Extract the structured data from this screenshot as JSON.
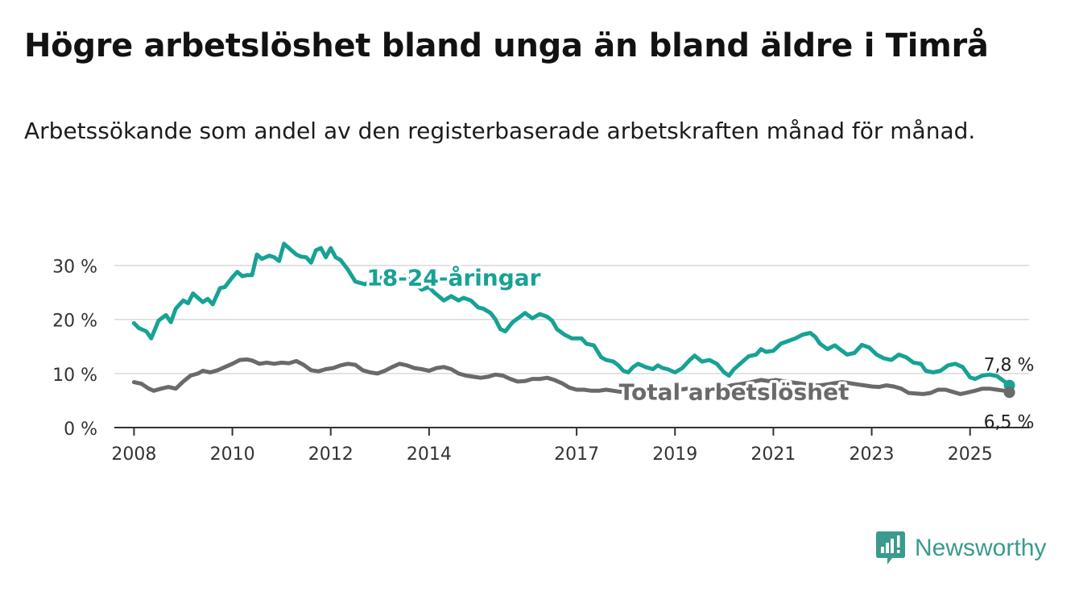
{
  "header": {
    "title": "Högre arbetslöshet bland unga än bland äldre i Timrå",
    "subtitle": "Arbetssökande som andel av den registerbaserade arbetskraften månad för månad."
  },
  "brand": {
    "name": "Newsworthy",
    "icon": "newsworthy-logo-icon",
    "color": "#3a9a8e"
  },
  "chart_data": {
    "type": "line",
    "title": "Högre arbetslöshet bland unga än bland äldre i Timrå",
    "subtitle": "Arbetssökande som andel av den registerbaserade arbetskraften månad för månad.",
    "xlabel": "",
    "ylabel": "",
    "xlim": [
      2007.6,
      2026.2
    ],
    "ylim": [
      0,
      35
    ],
    "x_ticks": [
      2008,
      2010,
      2012,
      2014,
      2017,
      2019,
      2021,
      2023,
      2025
    ],
    "x_tick_labels": [
      "2008",
      "2010",
      "2012",
      "2014",
      "2017",
      "2019",
      "2021",
      "2023",
      "2025"
    ],
    "y_ticks": [
      0,
      10,
      20,
      30
    ],
    "y_tick_labels": [
      "0 %",
      "10 %",
      "20 %",
      "30 %"
    ],
    "grid": true,
    "legend": "none",
    "series": [
      {
        "name": "18-24-åringar",
        "color": "#17a294",
        "end_label": "7,8 %",
        "points": [
          [
            2008.0,
            19.3
          ],
          [
            2008.1,
            18.4
          ],
          [
            2008.25,
            17.8
          ],
          [
            2008.35,
            16.5
          ],
          [
            2008.5,
            19.8
          ],
          [
            2008.65,
            20.8
          ],
          [
            2008.75,
            19.5
          ],
          [
            2008.85,
            22.0
          ],
          [
            2009.0,
            23.5
          ],
          [
            2009.1,
            23.0
          ],
          [
            2009.2,
            24.8
          ],
          [
            2009.3,
            24.0
          ],
          [
            2009.4,
            23.2
          ],
          [
            2009.5,
            23.8
          ],
          [
            2009.6,
            22.8
          ],
          [
            2009.75,
            25.8
          ],
          [
            2009.85,
            26.0
          ],
          [
            2010.0,
            27.8
          ],
          [
            2010.1,
            28.8
          ],
          [
            2010.2,
            28.0
          ],
          [
            2010.3,
            28.2
          ],
          [
            2010.4,
            28.2
          ],
          [
            2010.5,
            32.0
          ],
          [
            2010.6,
            31.2
          ],
          [
            2010.75,
            31.8
          ],
          [
            2010.85,
            31.5
          ],
          [
            2010.95,
            30.8
          ],
          [
            2011.05,
            34.0
          ],
          [
            2011.15,
            33.2
          ],
          [
            2011.3,
            32.0
          ],
          [
            2011.4,
            31.6
          ],
          [
            2011.5,
            31.5
          ],
          [
            2011.6,
            30.5
          ],
          [
            2011.7,
            32.8
          ],
          [
            2011.8,
            33.2
          ],
          [
            2011.9,
            31.5
          ],
          [
            2012.0,
            33.2
          ],
          [
            2012.1,
            31.5
          ],
          [
            2012.2,
            31.0
          ],
          [
            2012.35,
            29.2
          ],
          [
            2012.5,
            27.0
          ],
          [
            2012.7,
            26.5
          ],
          [
            2012.9,
            27.5
          ],
          [
            2013.1,
            27.8
          ],
          [
            2013.3,
            26.8
          ],
          [
            2013.5,
            28.0
          ],
          [
            2013.7,
            26.8
          ],
          [
            2013.85,
            25.5
          ],
          [
            2014.0,
            26.0
          ],
          [
            2014.1,
            25.0
          ],
          [
            2014.3,
            23.5
          ],
          [
            2014.45,
            24.3
          ],
          [
            2014.6,
            23.5
          ],
          [
            2014.7,
            24.0
          ],
          [
            2014.85,
            23.5
          ],
          [
            2015.0,
            22.2
          ],
          [
            2015.1,
            22.0
          ],
          [
            2015.25,
            21.2
          ],
          [
            2015.35,
            20.0
          ],
          [
            2015.45,
            18.2
          ],
          [
            2015.55,
            17.8
          ],
          [
            2015.7,
            19.5
          ],
          [
            2015.85,
            20.5
          ],
          [
            2015.95,
            21.2
          ],
          [
            2016.1,
            20.2
          ],
          [
            2016.25,
            21.0
          ],
          [
            2016.4,
            20.5
          ],
          [
            2016.5,
            19.8
          ],
          [
            2016.6,
            18.2
          ],
          [
            2016.75,
            17.2
          ],
          [
            2016.9,
            16.5
          ],
          [
            2017.1,
            16.5
          ],
          [
            2017.2,
            15.5
          ],
          [
            2017.35,
            15.2
          ],
          [
            2017.5,
            13.0
          ],
          [
            2017.6,
            12.5
          ],
          [
            2017.75,
            12.2
          ],
          [
            2017.85,
            11.5
          ],
          [
            2017.95,
            10.5
          ],
          [
            2018.05,
            10.2
          ],
          [
            2018.15,
            11.2
          ],
          [
            2018.25,
            11.8
          ],
          [
            2018.4,
            11.2
          ],
          [
            2018.55,
            10.8
          ],
          [
            2018.65,
            11.5
          ],
          [
            2018.75,
            11.0
          ],
          [
            2018.85,
            10.8
          ],
          [
            2019.0,
            10.2
          ],
          [
            2019.15,
            11.0
          ],
          [
            2019.3,
            12.5
          ],
          [
            2019.4,
            13.3
          ],
          [
            2019.55,
            12.2
          ],
          [
            2019.7,
            12.5
          ],
          [
            2019.85,
            11.8
          ],
          [
            2020.0,
            10.2
          ],
          [
            2020.1,
            9.6
          ],
          [
            2020.2,
            10.8
          ],
          [
            2020.35,
            12.0
          ],
          [
            2020.5,
            13.2
          ],
          [
            2020.65,
            13.5
          ],
          [
            2020.75,
            14.5
          ],
          [
            2020.85,
            14.0
          ],
          [
            2021.0,
            14.2
          ],
          [
            2021.15,
            15.5
          ],
          [
            2021.3,
            16.0
          ],
          [
            2021.45,
            16.5
          ],
          [
            2021.6,
            17.2
          ],
          [
            2021.75,
            17.5
          ],
          [
            2021.85,
            16.8
          ],
          [
            2021.95,
            15.5
          ],
          [
            2022.1,
            14.5
          ],
          [
            2022.25,
            15.2
          ],
          [
            2022.35,
            14.5
          ],
          [
            2022.5,
            13.5
          ],
          [
            2022.65,
            13.8
          ],
          [
            2022.8,
            15.3
          ],
          [
            2022.95,
            14.8
          ],
          [
            2023.1,
            13.5
          ],
          [
            2023.25,
            12.8
          ],
          [
            2023.4,
            12.5
          ],
          [
            2023.55,
            13.5
          ],
          [
            2023.7,
            13.0
          ],
          [
            2023.85,
            12.0
          ],
          [
            2024.0,
            11.8
          ],
          [
            2024.1,
            10.5
          ],
          [
            2024.25,
            10.2
          ],
          [
            2024.4,
            10.5
          ],
          [
            2024.55,
            11.5
          ],
          [
            2024.7,
            11.8
          ],
          [
            2024.85,
            11.2
          ],
          [
            2025.0,
            9.3
          ],
          [
            2025.1,
            9.0
          ],
          [
            2025.25,
            9.6
          ],
          [
            2025.4,
            9.8
          ],
          [
            2025.55,
            9.5
          ],
          [
            2025.7,
            8.5
          ],
          [
            2025.8,
            7.8
          ]
        ]
      },
      {
        "name": "Total arbetslöshet",
        "color": "#6a6a6a",
        "end_label": "6,5 %",
        "points": [
          [
            2008.0,
            8.4
          ],
          [
            2008.15,
            8.1
          ],
          [
            2008.3,
            7.2
          ],
          [
            2008.4,
            6.8
          ],
          [
            2008.55,
            7.2
          ],
          [
            2008.7,
            7.5
          ],
          [
            2008.85,
            7.2
          ],
          [
            2009.0,
            8.5
          ],
          [
            2009.15,
            9.6
          ],
          [
            2009.3,
            10.0
          ],
          [
            2009.4,
            10.5
          ],
          [
            2009.55,
            10.2
          ],
          [
            2009.7,
            10.6
          ],
          [
            2009.85,
            11.2
          ],
          [
            2010.0,
            11.8
          ],
          [
            2010.15,
            12.5
          ],
          [
            2010.3,
            12.6
          ],
          [
            2010.4,
            12.4
          ],
          [
            2010.55,
            11.8
          ],
          [
            2010.7,
            12.0
          ],
          [
            2010.85,
            11.8
          ],
          [
            2011.0,
            12.0
          ],
          [
            2011.15,
            11.9
          ],
          [
            2011.3,
            12.3
          ],
          [
            2011.45,
            11.6
          ],
          [
            2011.6,
            10.6
          ],
          [
            2011.75,
            10.4
          ],
          [
            2011.9,
            10.8
          ],
          [
            2012.05,
            11.0
          ],
          [
            2012.2,
            11.5
          ],
          [
            2012.35,
            11.8
          ],
          [
            2012.5,
            11.6
          ],
          [
            2012.65,
            10.6
          ],
          [
            2012.8,
            10.2
          ],
          [
            2012.95,
            10.0
          ],
          [
            2013.1,
            10.5
          ],
          [
            2013.25,
            11.2
          ],
          [
            2013.4,
            11.8
          ],
          [
            2013.55,
            11.5
          ],
          [
            2013.7,
            11.0
          ],
          [
            2013.85,
            10.8
          ],
          [
            2014.0,
            10.5
          ],
          [
            2014.15,
            11.0
          ],
          [
            2014.3,
            11.2
          ],
          [
            2014.45,
            10.8
          ],
          [
            2014.6,
            10.0
          ],
          [
            2014.75,
            9.6
          ],
          [
            2014.9,
            9.4
          ],
          [
            2015.05,
            9.2
          ],
          [
            2015.2,
            9.4
          ],
          [
            2015.35,
            9.8
          ],
          [
            2015.5,
            9.6
          ],
          [
            2015.65,
            9.0
          ],
          [
            2015.8,
            8.5
          ],
          [
            2015.95,
            8.6
          ],
          [
            2016.1,
            9.0
          ],
          [
            2016.25,
            9.0
          ],
          [
            2016.4,
            9.2
          ],
          [
            2016.55,
            8.8
          ],
          [
            2016.7,
            8.2
          ],
          [
            2016.85,
            7.4
          ],
          [
            2017.0,
            7.0
          ],
          [
            2017.15,
            7.0
          ],
          [
            2017.3,
            6.8
          ],
          [
            2017.45,
            6.8
          ],
          [
            2017.6,
            7.0
          ],
          [
            2017.75,
            6.8
          ],
          [
            2017.9,
            6.6
          ],
          [
            2018.05,
            6.8
          ],
          [
            2018.2,
            7.0
          ],
          [
            2018.35,
            7.0
          ],
          [
            2018.5,
            6.8
          ],
          [
            2018.65,
            6.8
          ],
          [
            2018.8,
            6.6
          ],
          [
            2018.95,
            6.8
          ],
          [
            2019.1,
            7.0
          ],
          [
            2019.25,
            7.2
          ],
          [
            2019.4,
            7.4
          ],
          [
            2019.55,
            7.2
          ],
          [
            2019.7,
            7.0
          ],
          [
            2019.85,
            7.2
          ],
          [
            2020.0,
            7.4
          ],
          [
            2020.15,
            7.8
          ],
          [
            2020.3,
            8.0
          ],
          [
            2020.45,
            8.2
          ],
          [
            2020.6,
            8.5
          ],
          [
            2020.75,
            8.8
          ],
          [
            2020.9,
            8.6
          ],
          [
            2021.05,
            8.8
          ],
          [
            2021.2,
            8.6
          ],
          [
            2021.35,
            8.4
          ],
          [
            2021.5,
            8.2
          ],
          [
            2021.65,
            8.0
          ],
          [
            2021.8,
            7.8
          ],
          [
            2021.95,
            7.8
          ],
          [
            2022.1,
            8.0
          ],
          [
            2022.25,
            8.2
          ],
          [
            2022.4,
            8.4
          ],
          [
            2022.55,
            8.2
          ],
          [
            2022.7,
            8.0
          ],
          [
            2022.85,
            7.8
          ],
          [
            2023.0,
            7.6
          ],
          [
            2023.15,
            7.5
          ],
          [
            2023.3,
            7.8
          ],
          [
            2023.45,
            7.6
          ],
          [
            2023.6,
            7.2
          ],
          [
            2023.75,
            6.4
          ],
          [
            2023.9,
            6.3
          ],
          [
            2024.05,
            6.2
          ],
          [
            2024.2,
            6.4
          ],
          [
            2024.35,
            7.0
          ],
          [
            2024.5,
            7.0
          ],
          [
            2024.65,
            6.6
          ],
          [
            2024.8,
            6.2
          ],
          [
            2024.95,
            6.5
          ],
          [
            2025.1,
            6.8
          ],
          [
            2025.25,
            7.2
          ],
          [
            2025.4,
            7.2
          ],
          [
            2025.55,
            7.0
          ],
          [
            2025.7,
            6.8
          ],
          [
            2025.8,
            6.5
          ]
        ]
      }
    ]
  }
}
